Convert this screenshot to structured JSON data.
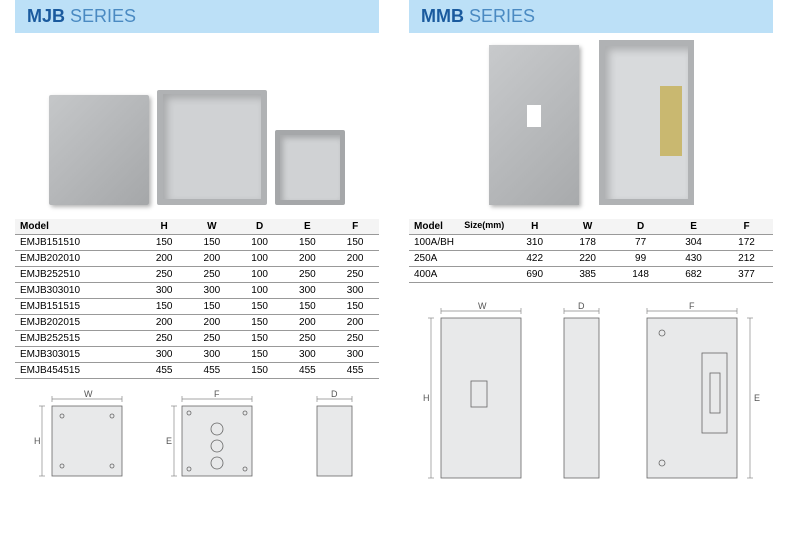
{
  "colors": {
    "header_bg": "#bce0f7",
    "title_bold": "#1a5a9e",
    "title_light": "#4a8ac2",
    "box_fill": "#e8e9ea",
    "line": "#888"
  },
  "mjb": {
    "title_bold": "MJB",
    "title_light": " SERIES",
    "table": {
      "headers": [
        "Model",
        "H",
        "W",
        "D",
        "E",
        "F"
      ],
      "rows": [
        [
          "EMJB151510",
          "150",
          "150",
          "100",
          "150",
          "150"
        ],
        [
          "EMJB202010",
          "200",
          "200",
          "100",
          "200",
          "200"
        ],
        [
          "EMJB252510",
          "250",
          "250",
          "100",
          "250",
          "250"
        ],
        [
          "EMJB303010",
          "300",
          "300",
          "100",
          "300",
          "300"
        ],
        [
          "EMJB151515",
          "150",
          "150",
          "150",
          "150",
          "150"
        ],
        [
          "EMJB202015",
          "200",
          "200",
          "150",
          "200",
          "200"
        ],
        [
          "EMJB252515",
          "250",
          "250",
          "150",
          "250",
          "250"
        ],
        [
          "EMJB303015",
          "300",
          "300",
          "150",
          "300",
          "300"
        ],
        [
          "EMJB454515",
          "455",
          "455",
          "150",
          "455",
          "455"
        ]
      ]
    },
    "diag_labels": {
      "W": "W",
      "H": "H",
      "F": "F",
      "E": "E",
      "D": "D"
    }
  },
  "mmb": {
    "title_bold": "MMB",
    "title_light": " SERIES",
    "size_label": "Size(mm)",
    "table": {
      "headers": [
        "Model",
        "H",
        "W",
        "D",
        "E",
        "F"
      ],
      "rows": [
        [
          "100A/BH",
          "310",
          "178",
          "77",
          "304",
          "172"
        ],
        [
          "250A",
          "422",
          "220",
          "99",
          "430",
          "212"
        ],
        [
          "400A",
          "690",
          "385",
          "148",
          "682",
          "377"
        ]
      ]
    },
    "diag_labels": {
      "W": "W",
      "H": "H",
      "D": "D",
      "F": "F",
      "E": "E"
    }
  }
}
